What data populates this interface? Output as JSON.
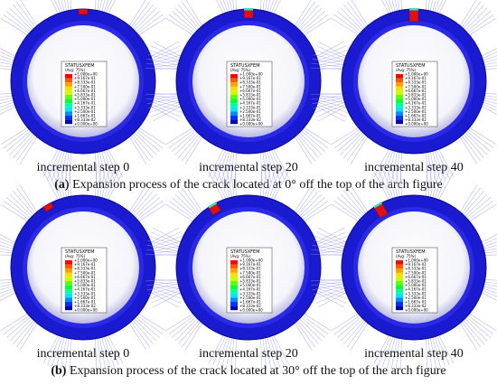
{
  "legend": {
    "title": "STATUSXFEM",
    "subtitle": "(Avg: 75%)",
    "values": [
      "+1.000e+00",
      "+9.167e-01",
      "+8.333e-01",
      "+7.500e-01",
      "+6.667e-01",
      "+5.833e-01",
      "+5.000e-01",
      "+4.167e-01",
      "+3.333e-01",
      "+2.500e-01",
      "+1.667e-01",
      "+8.333e-02",
      "+0.000e+00"
    ]
  },
  "rows": [
    {
      "caption_tag": "(a)",
      "caption_text": "Expansion process of the crack located at 0° off the top of the arch figure",
      "panels": [
        {
          "label": "incremental step 0"
        },
        {
          "label": "incremental step 20"
        },
        {
          "label": "incremental step 40"
        }
      ]
    },
    {
      "caption_tag": "(b)",
      "caption_text": "Expansion process of the crack located at 30° off the top of the arch figure",
      "panels": [
        {
          "label": "incremental step 0"
        },
        {
          "label": "incremental step 20"
        },
        {
          "label": "incremental step 40"
        }
      ]
    }
  ]
}
